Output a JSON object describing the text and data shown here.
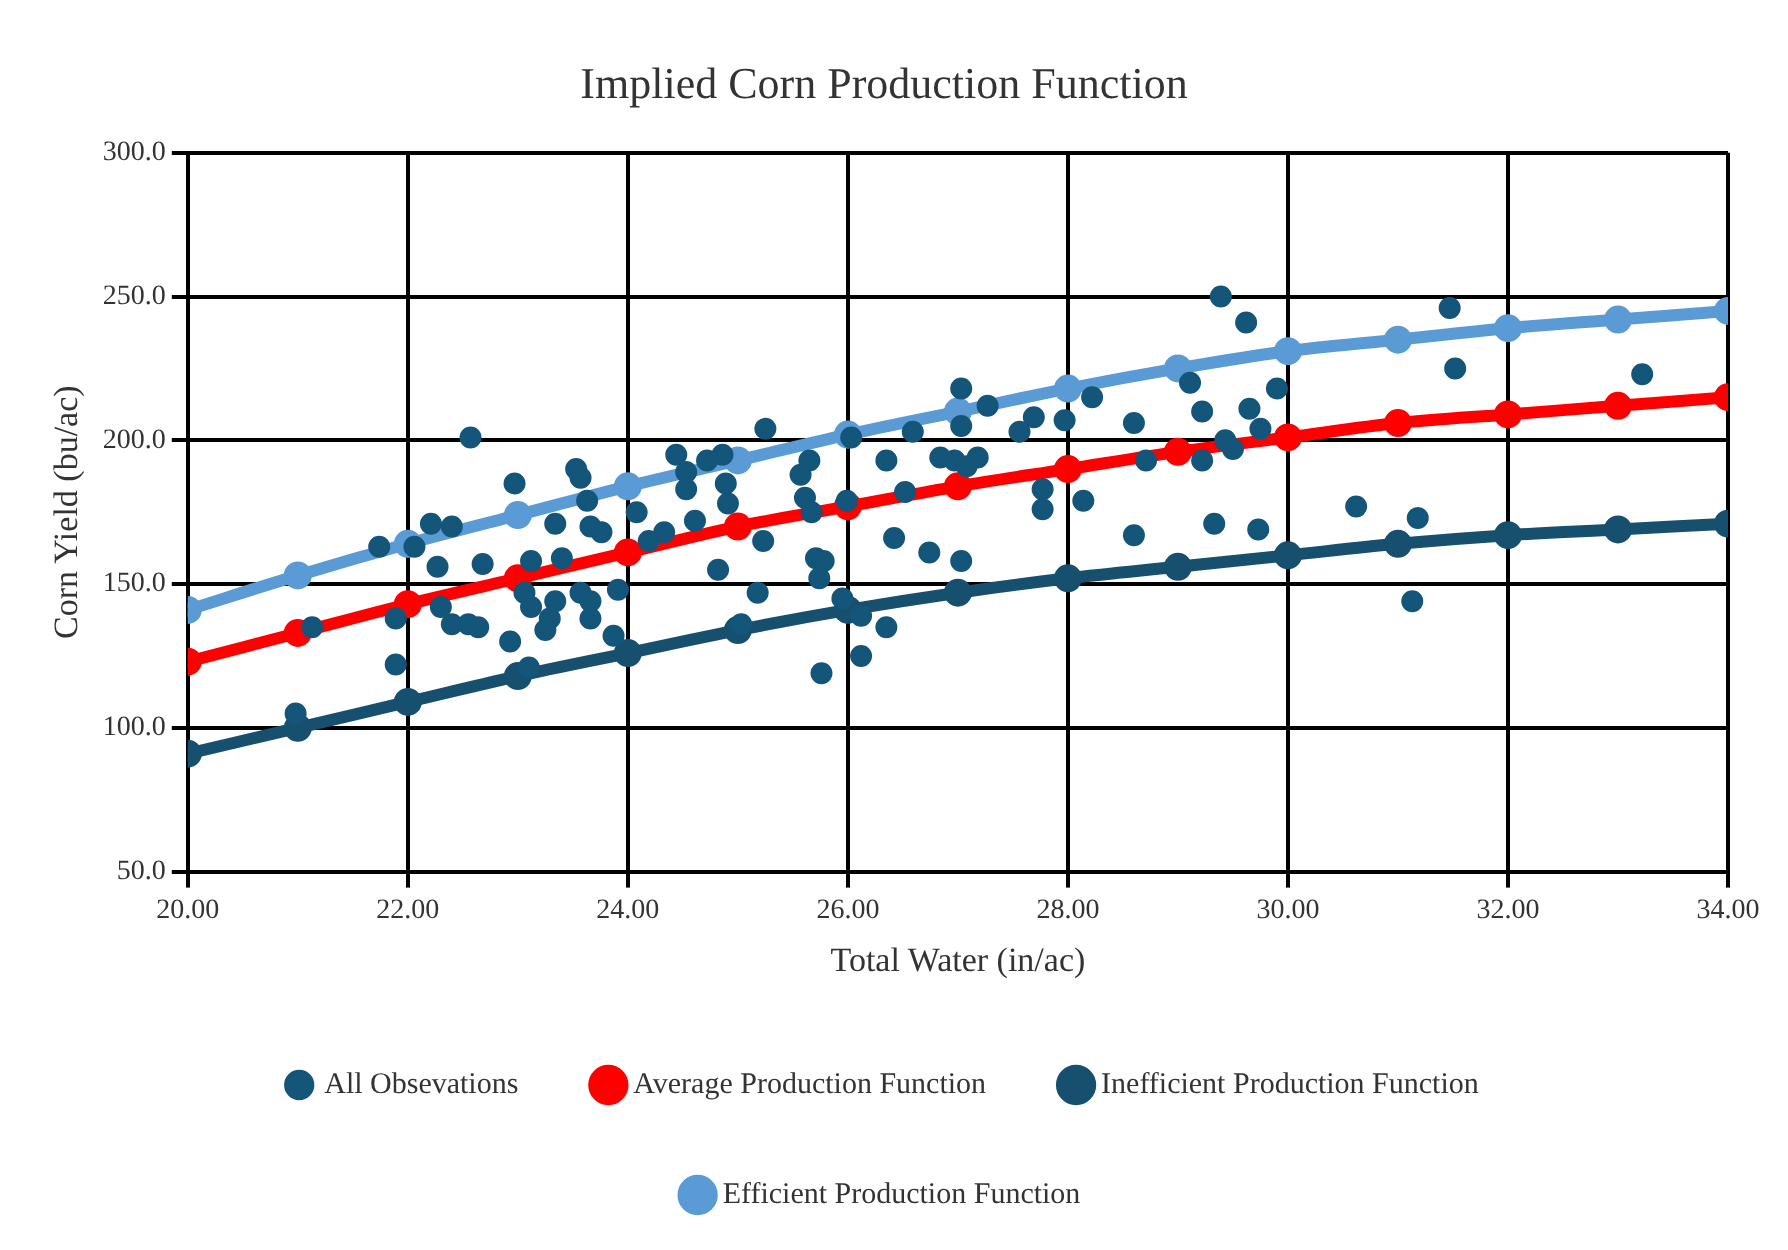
{
  "chart_data": {
    "type": "scatter",
    "title": "Implied Corn Production Function",
    "xlabel": "Total Water (in/ac)",
    "ylabel": "Corn Yield (bu/ac)",
    "xlim": [
      20,
      34
    ],
    "ylim": [
      50,
      300
    ],
    "xticks": [
      {
        "value": 20,
        "label": "20.00"
      },
      {
        "value": 22,
        "label": "22.00"
      },
      {
        "value": 24,
        "label": "24.00"
      },
      {
        "value": 26,
        "label": "26.00"
      },
      {
        "value": 28,
        "label": "28.00"
      },
      {
        "value": 30,
        "label": "30.00"
      },
      {
        "value": 32,
        "label": "32.00"
      },
      {
        "value": 34,
        "label": "34.00"
      }
    ],
    "yticks": [
      {
        "value": 50,
        "label": "50.0"
      },
      {
        "value": 100,
        "label": "100.0"
      },
      {
        "value": 150,
        "label": "150.0"
      },
      {
        "value": 200,
        "label": "200.0"
      },
      {
        "value": 250,
        "label": "250.0"
      },
      {
        "value": 300,
        "label": "300.0"
      }
    ],
    "grid": true,
    "legend": "bottom",
    "marker": "circle",
    "series": [
      {
        "name": "All Obsevations",
        "color": "#14557a",
        "x": [
          22.57,
          22.97,
          23.53,
          23.57,
          24.44,
          24.53,
          22.21,
          22.4,
          21.74,
          22.06,
          23.34,
          23.63,
          23.66,
          23.76,
          24.08,
          24.19,
          24.33,
          22.27,
          22.68,
          23.12,
          23.4,
          23.06,
          23.12,
          23.34,
          23.57,
          23.66,
          23.91,
          23.29,
          23.66,
          23.25,
          22.3,
          22.4,
          22.55,
          22.64,
          21.13,
          21.89,
          21.89,
          22.93,
          23.87,
          20.98,
          23.1,
          24.61,
          27.03,
          27.27,
          27.03,
          28.22,
          28.6,
          27.97,
          27.69,
          27.56,
          26.59,
          26.03,
          25.25,
          24.72,
          24.86,
          24.53,
          24.89,
          24.91,
          25.65,
          25.57,
          25.61,
          25.67,
          25.99,
          26.35,
          26.52,
          26.84,
          26.97,
          27.08,
          27.18,
          27.77,
          27.77,
          28.14,
          28.71,
          25.23,
          26.42,
          26.74,
          27.03,
          28.6,
          24.82,
          25.18,
          25.71,
          25.78,
          25.74,
          25.95,
          26.12,
          26.35,
          25.03,
          26.12,
          25.76,
          29.39,
          29.62,
          31.47,
          31.52,
          33.22,
          29.11,
          29.22,
          29.65,
          29.9,
          29.75,
          29.22,
          29.43,
          29.5,
          29.33,
          29.73,
          30.62,
          31.18,
          31.13
        ],
        "values": [
          201,
          185,
          190,
          187,
          195,
          189,
          171,
          170,
          163,
          163,
          171,
          179,
          170,
          168,
          175,
          165,
          168,
          156,
          157,
          158,
          159,
          147,
          142,
          144,
          147,
          144,
          148,
          138,
          138,
          134,
          142,
          136,
          136,
          135,
          135,
          138,
          122,
          130,
          132,
          105,
          121,
          172,
          218,
          212,
          205,
          215,
          206,
          207,
          208,
          203,
          203,
          201,
          204,
          193,
          195,
          183,
          185,
          178,
          193,
          188,
          180,
          175,
          179,
          193,
          182,
          194,
          193,
          191,
          194,
          183,
          176,
          179,
          193,
          165,
          166,
          161,
          158,
          167,
          155,
          147,
          159,
          158,
          152,
          145,
          139,
          135,
          136,
          125,
          119,
          250,
          241,
          246,
          225,
          223,
          220,
          210,
          211,
          218,
          204,
          193,
          200,
          197,
          171,
          169,
          177,
          173,
          144
        ]
      },
      {
        "name": "Average Production Function",
        "type": "line",
        "color": "#ff0000",
        "x": [
          20,
          21,
          22,
          23,
          24,
          25,
          26,
          27,
          28,
          29,
          30,
          31,
          32,
          33,
          34
        ],
        "values": [
          123,
          133,
          143,
          152,
          161,
          170,
          177,
          184,
          190,
          196,
          201,
          206,
          209,
          212,
          215
        ]
      },
      {
        "name": "Inefficient Production Function",
        "type": "line",
        "color": "#17506e",
        "x": [
          20,
          21,
          22,
          23,
          24,
          25,
          26,
          27,
          28,
          29,
          30,
          31,
          32,
          33,
          34
        ],
        "values": [
          91,
          100,
          109,
          118,
          126,
          134,
          141,
          147,
          152,
          156,
          160,
          164,
          167,
          169,
          171
        ]
      },
      {
        "name": "Efficient Production Function",
        "type": "line",
        "color": "#5b9bd5",
        "x": [
          20,
          21,
          22,
          23,
          24,
          25,
          26,
          27,
          28,
          29,
          30,
          31,
          32,
          33,
          34
        ],
        "values": [
          141,
          153,
          164,
          174,
          184,
          193,
          202,
          210,
          218,
          225,
          231,
          235,
          239,
          242,
          245
        ]
      }
    ]
  }
}
